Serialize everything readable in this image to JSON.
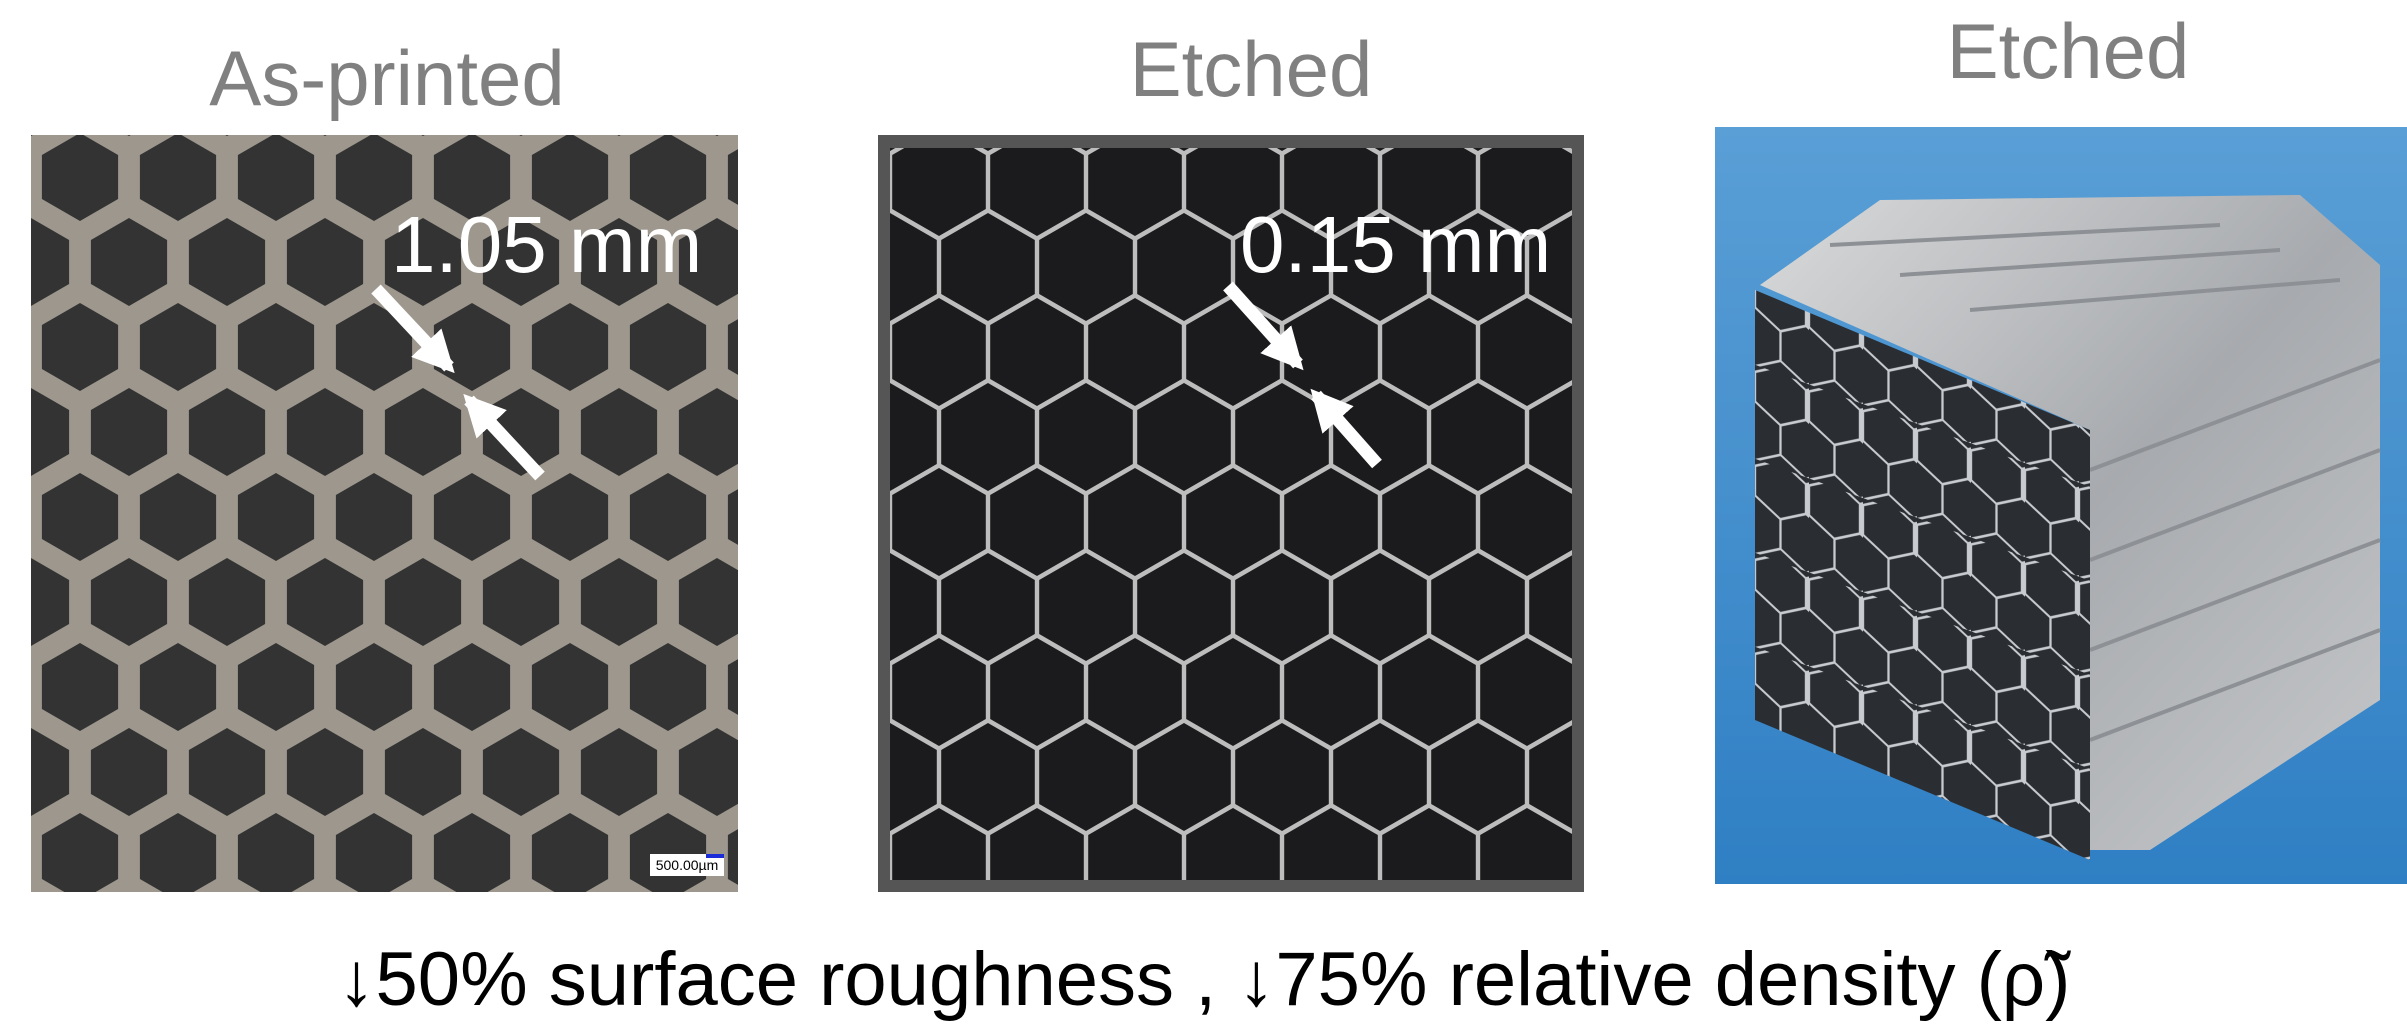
{
  "panels": [
    {
      "title": "As-printed",
      "annotation": "1.05 mm",
      "scale_bar": "500.00µm"
    },
    {
      "title": "Etched",
      "annotation": "0.15 mm"
    },
    {
      "title": "Etched"
    }
  ],
  "caption": "↓50% surface roughness , ↓75% relative density (ρ̃)"
}
